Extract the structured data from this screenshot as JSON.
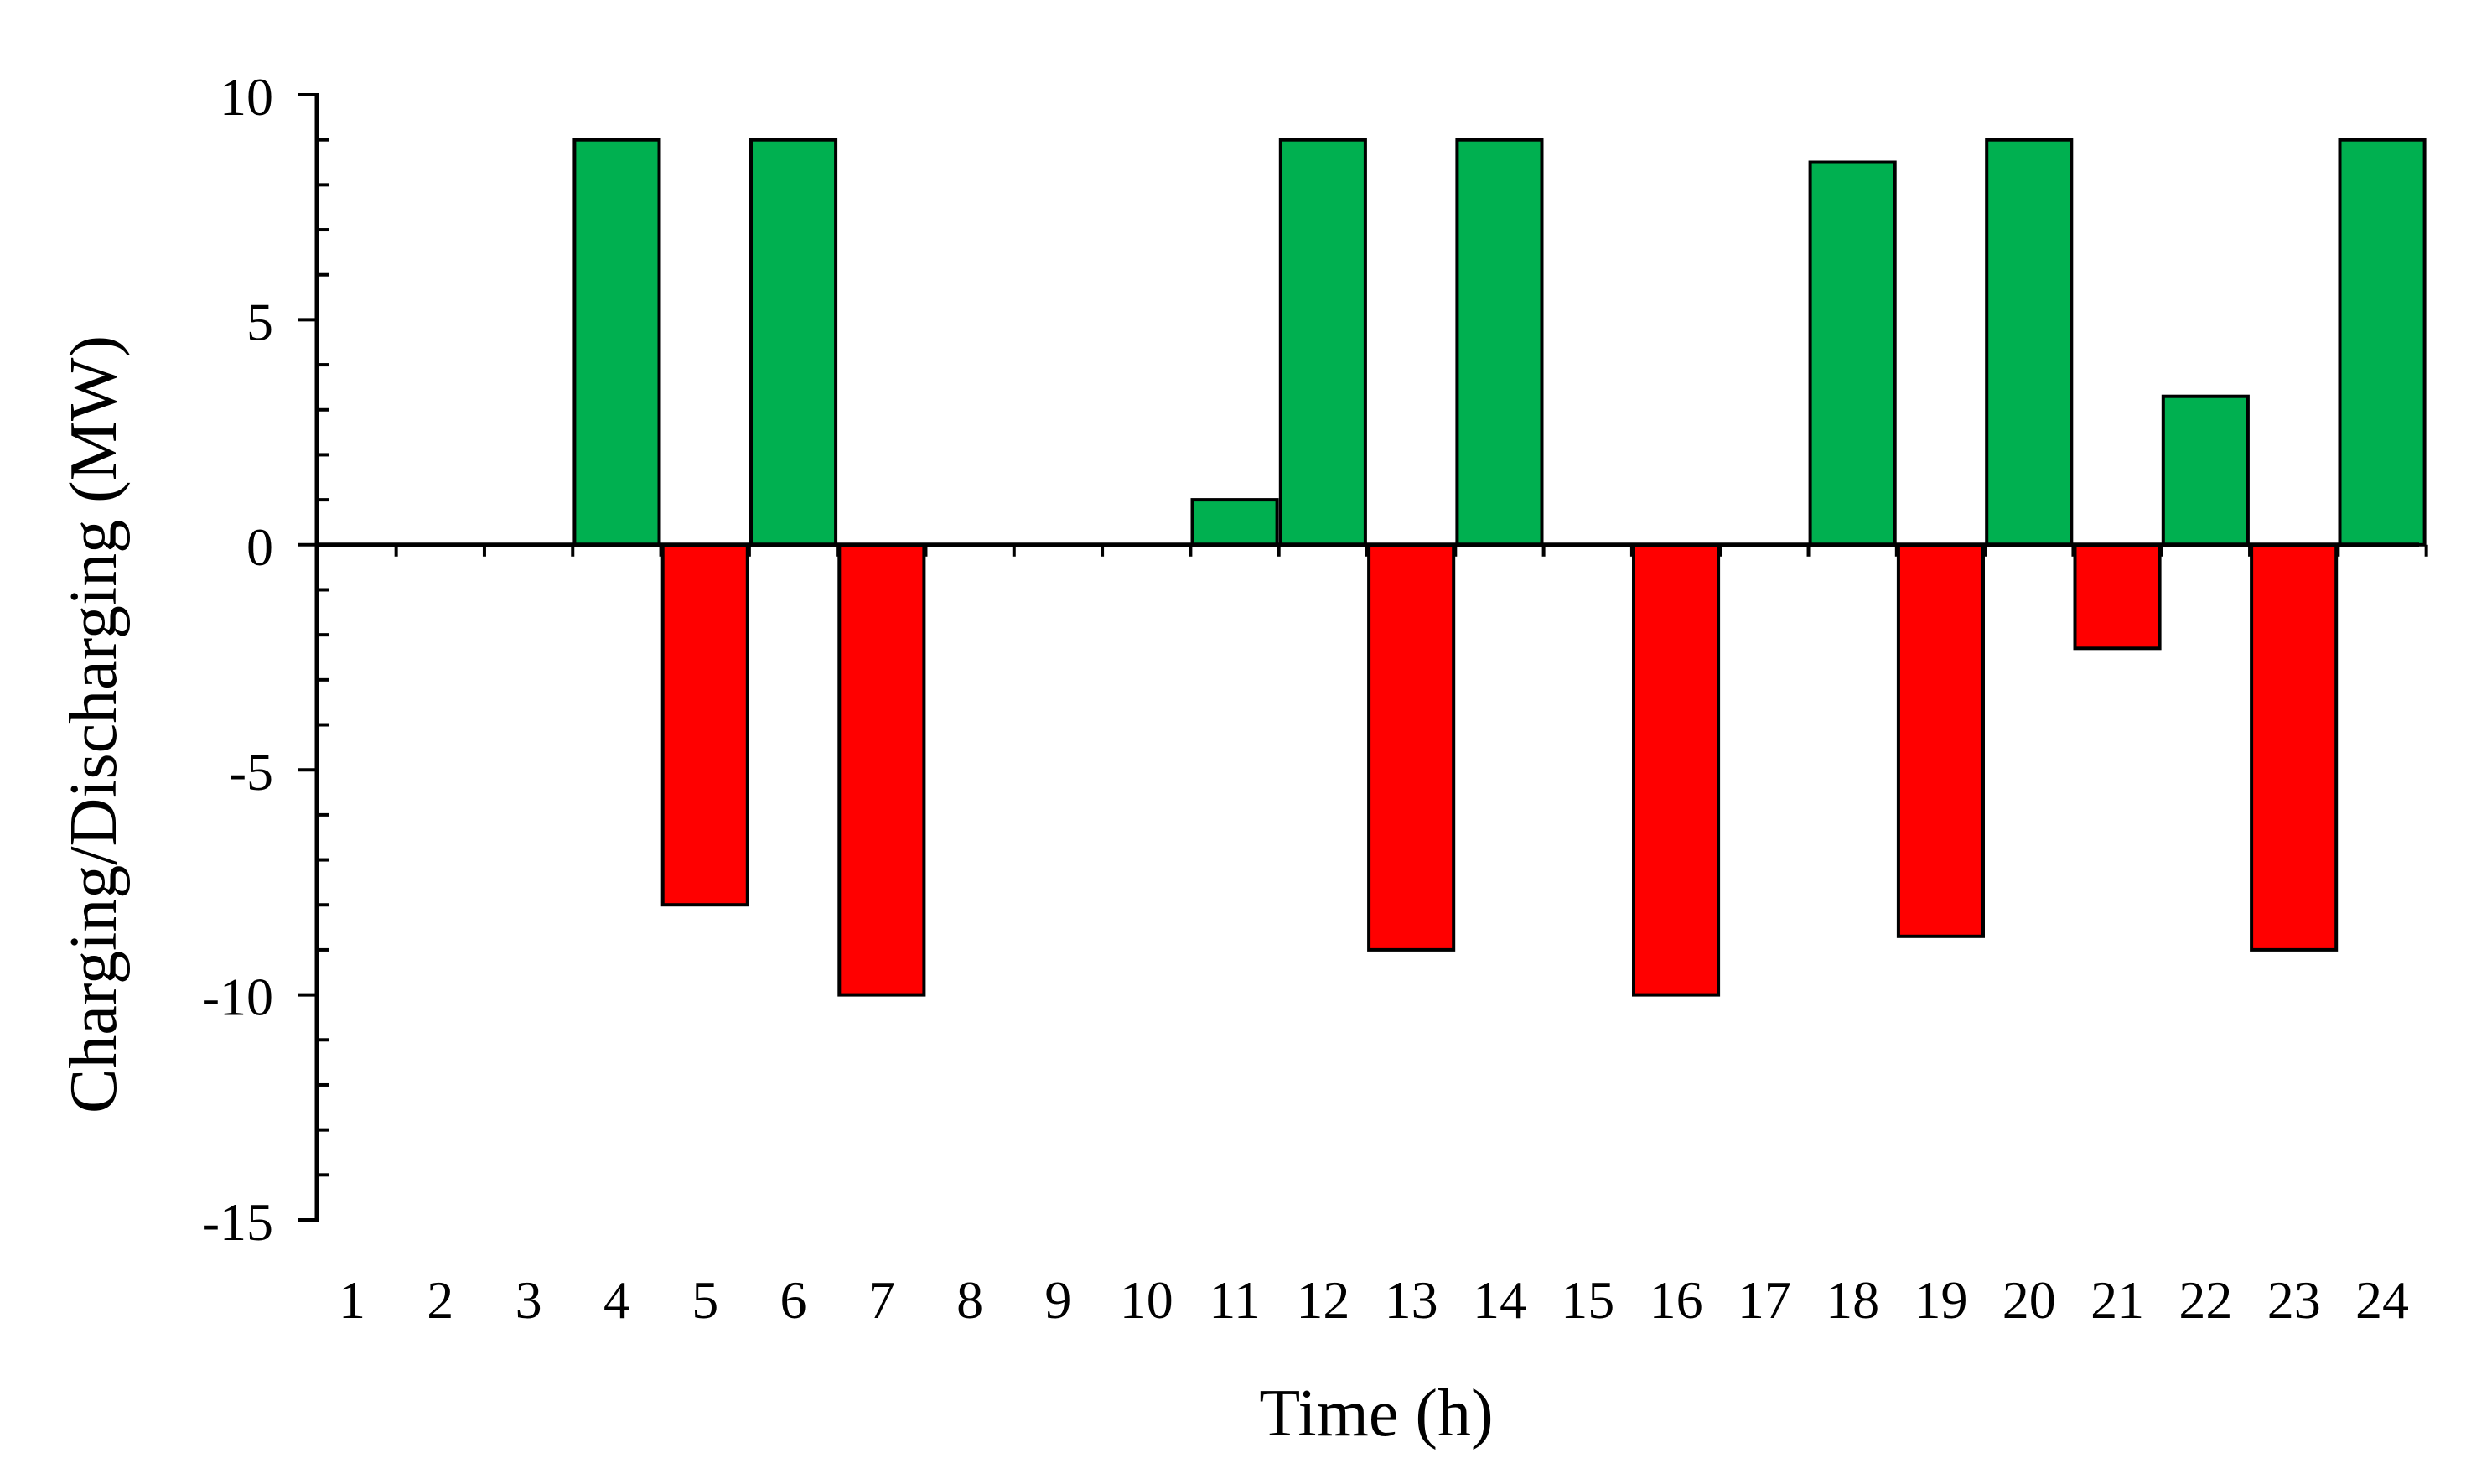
{
  "chart_data": {
    "type": "bar",
    "title": "",
    "xlabel": "Time (h)",
    "ylabel": "Charging/Discharging (MW)",
    "categories": [
      "1",
      "2",
      "3",
      "4",
      "5",
      "6",
      "7",
      "8",
      "9",
      "10",
      "11",
      "12",
      "13",
      "14",
      "15",
      "16",
      "17",
      "18",
      "19",
      "20",
      "21",
      "22",
      "23",
      "24"
    ],
    "values": [
      0,
      0,
      0,
      9,
      -8,
      9,
      -10,
      0,
      0,
      0,
      1,
      9,
      -9,
      9,
      0,
      -10,
      0,
      8.5,
      -8.7,
      9,
      -2.3,
      3.3,
      -9,
      9
    ],
    "ylim": [
      -15,
      10
    ],
    "yticks": [
      -15,
      -10,
      -5,
      0,
      5,
      10
    ],
    "y_minor_step": 1,
    "grid": false,
    "legend": "none",
    "colors": {
      "positive": "#00b050",
      "negative": "#ff0000",
      "outline": "#000000"
    }
  }
}
